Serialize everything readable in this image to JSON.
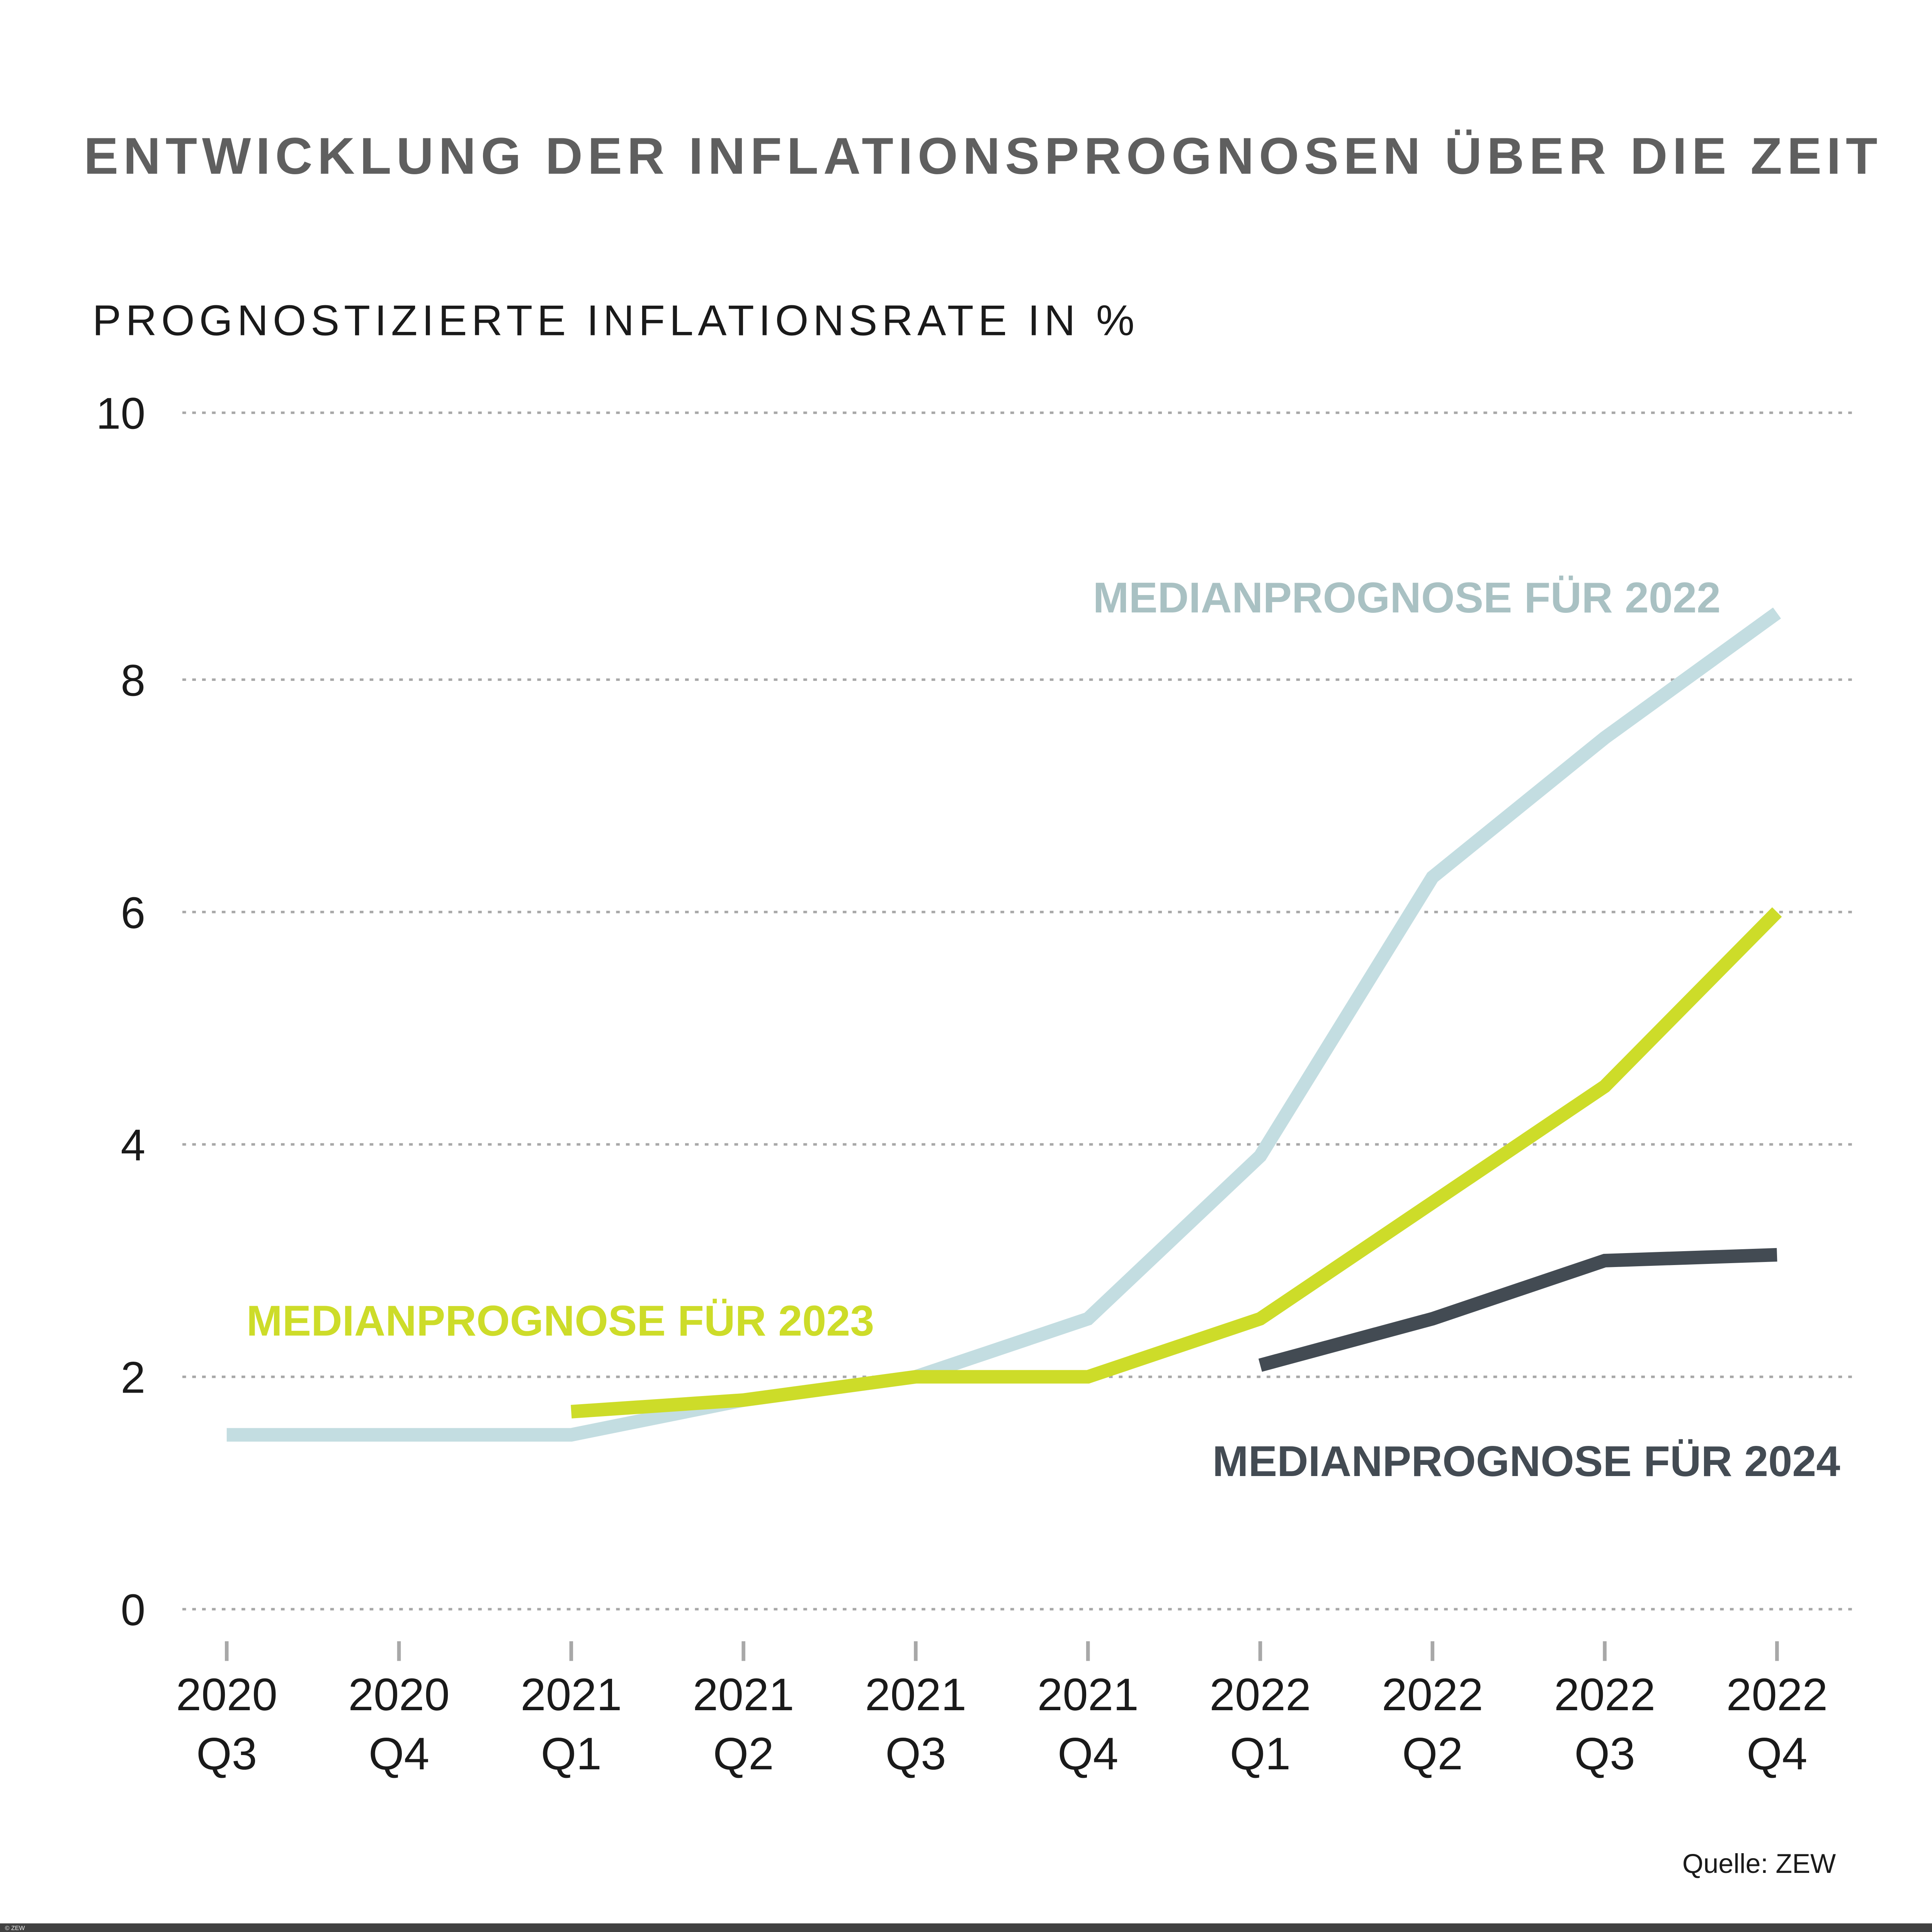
{
  "chart_data": {
    "type": "line",
    "title": "ENTWICKLUNG DER INFLATIONSPROGNOSEN ÜBER DIE ZEIT",
    "ylabel": "PROGNOSTIZIERTE INFLATIONSRATE IN %",
    "xlabel": "",
    "ylim": [
      0,
      10
    ],
    "yticks": [
      "0",
      "2",
      "4",
      "6",
      "8",
      "10"
    ],
    "categories": [
      [
        "2020",
        "Q3"
      ],
      [
        "2020",
        "Q4"
      ],
      [
        "2021",
        "Q1"
      ],
      [
        "2021",
        "Q2"
      ],
      [
        "2021",
        "Q3"
      ],
      [
        "2021",
        "Q4"
      ],
      [
        "2022",
        "Q1"
      ],
      [
        "2022",
        "Q2"
      ],
      [
        "2022",
        "Q3"
      ],
      [
        "2022",
        "Q4"
      ]
    ],
    "grid": true,
    "legend": "inline labels",
    "series": [
      {
        "name": "MEDIANPROGNOSE FÜR 2022",
        "color": "#c3dde1",
        "label_color": "#a9c1c3",
        "values": [
          1.5,
          1.5,
          1.5,
          1.8,
          2.0,
          2.5,
          3.9,
          6.3,
          7.5,
          8.5
        ]
      },
      {
        "name": "MEDIANPROGNOSE FÜR 2023",
        "color": "#cddc29",
        "label_color": "#cddc29",
        "values": [
          null,
          null,
          1.7,
          1.8,
          2.0,
          2.0,
          2.5,
          3.5,
          4.5,
          6.0
        ]
      },
      {
        "name": "MEDIANPROGNOSE FÜR 2024",
        "color": "#434b53",
        "label_color": "#434b53",
        "values": [
          null,
          null,
          null,
          null,
          null,
          null,
          2.1,
          2.5,
          3.0,
          3.05
        ]
      }
    ],
    "source": "Quelle: ZEW"
  },
  "footer": {
    "copyright": "© ZEW",
    "bar_color": "#414141"
  }
}
